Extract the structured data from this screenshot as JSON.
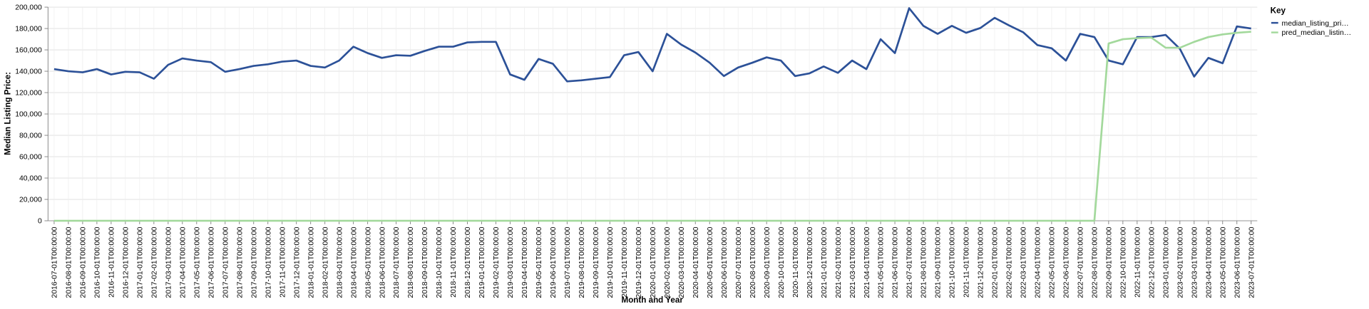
{
  "chart_data": {
    "type": "line",
    "x_label": "Month and Year",
    "y_label": "Median Listing Price:",
    "legend_title": "Key",
    "categories": [
      "2016-07-01T00:00:00",
      "2016-08-01T00:00:00",
      "2016-09-01T00:00:00",
      "2016-10-01T00:00:00",
      "2016-11-01T00:00:00",
      "2016-12-01T00:00:00",
      "2017-01-01T00:00:00",
      "2017-02-01T00:00:00",
      "2017-03-01T00:00:00",
      "2017-04-01T00:00:00",
      "2017-05-01T00:00:00",
      "2017-06-01T00:00:00",
      "2017-07-01T00:00:00",
      "2017-08-01T00:00:00",
      "2017-09-01T00:00:00",
      "2017-10-01T00:00:00",
      "2017-11-01T00:00:00",
      "2017-12-01T00:00:00",
      "2018-01-01T00:00:00",
      "2018-02-01T00:00:00",
      "2018-03-01T00:00:00",
      "2018-04-01T00:00:00",
      "2018-05-01T00:00:00",
      "2018-06-01T00:00:00",
      "2018-07-01T00:00:00",
      "2018-08-01T00:00:00",
      "2018-09-01T00:00:00",
      "2018-10-01T00:00:00",
      "2018-11-01T00:00:00",
      "2018-12-01T00:00:00",
      "2019-01-01T00:00:00",
      "2019-02-01T00:00:00",
      "2019-03-01T00:00:00",
      "2019-04-01T00:00:00",
      "2019-05-01T00:00:00",
      "2019-06-01T00:00:00",
      "2019-07-01T00:00:00",
      "2019-08-01T00:00:00",
      "2019-09-01T00:00:00",
      "2019-10-01T00:00:00",
      "2019-11-01T00:00:00",
      "2019-12-01T00:00:00",
      "2020-01-01T00:00:00",
      "2020-02-01T00:00:00",
      "2020-03-01T00:00:00",
      "2020-04-01T00:00:00",
      "2020-05-01T00:00:00",
      "2020-06-01T00:00:00",
      "2020-07-01T00:00:00",
      "2020-08-01T00:00:00",
      "2020-09-01T00:00:00",
      "2020-10-01T00:00:00",
      "2020-11-01T00:00:00",
      "2020-12-01T00:00:00",
      "2021-01-01T00:00:00",
      "2021-02-01T00:00:00",
      "2021-03-01T00:00:00",
      "2021-04-01T00:00:00",
      "2021-05-01T00:00:00",
      "2021-06-01T00:00:00",
      "2021-07-01T00:00:00",
      "2021-08-01T00:00:00",
      "2021-09-01T00:00:00",
      "2021-10-01T00:00:00",
      "2021-11-01T00:00:00",
      "2021-12-01T00:00:00",
      "2022-01-01T00:00:00",
      "2022-02-01T00:00:00",
      "2022-03-01T00:00:00",
      "2022-04-01T00:00:00",
      "2022-05-01T00:00:00",
      "2022-06-01T00:00:00",
      "2022-07-01T00:00:00",
      "2022-08-01T00:00:00",
      "2022-09-01T00:00:00",
      "2022-10-01T00:00:00",
      "2022-11-01T00:00:00",
      "2022-12-01T00:00:00",
      "2023-01-01T00:00:00",
      "2023-02-01T00:00:00",
      "2023-03-01T00:00:00",
      "2023-04-01T00:00:00",
      "2023-05-01T00:00:00",
      "2023-06-01T00:00:00",
      "2023-07-01T00:00:00"
    ],
    "series": [
      {
        "name": "median_listing_pri…",
        "color": "#2c5198",
        "values": [
          142000,
          140000,
          139000,
          142000,
          137000,
          139500,
          139000,
          133000,
          146000,
          152000,
          150000,
          148500,
          139500,
          142000,
          145000,
          146500,
          149000,
          150000,
          145000,
          143500,
          150000,
          163000,
          157000,
          152500,
          155000,
          154500,
          159000,
          163000,
          163000,
          167000,
          167500,
          167500,
          137000,
          132000,
          151500,
          147000,
          130500,
          131500,
          133000,
          134500,
          155000,
          158000,
          140000,
          175000,
          165000,
          157500,
          148000,
          135500,
          143500,
          148000,
          153000,
          150000,
          135500,
          138000,
          144500,
          138500,
          150000,
          142000,
          170000,
          157000,
          199000,
          182500,
          175000,
          182500,
          176000,
          180500,
          190000,
          183000,
          176500,
          164500,
          161500,
          150000,
          175000,
          172000,
          150000,
          146500,
          172000,
          172000,
          174000,
          161000,
          135000,
          152500,
          147500,
          182000,
          180000
        ]
      },
      {
        "name": "pred_median_listin…",
        "color": "#a3d99c",
        "values": [
          0,
          0,
          0,
          0,
          0,
          0,
          0,
          0,
          0,
          0,
          0,
          0,
          0,
          0,
          0,
          0,
          0,
          0,
          0,
          0,
          0,
          0,
          0,
          0,
          0,
          0,
          0,
          0,
          0,
          0,
          0,
          0,
          0,
          0,
          0,
          0,
          0,
          0,
          0,
          0,
          0,
          0,
          0,
          0,
          0,
          0,
          0,
          0,
          0,
          0,
          0,
          0,
          0,
          0,
          0,
          0,
          0,
          0,
          0,
          0,
          0,
          0,
          0,
          0,
          0,
          0,
          0,
          0,
          0,
          0,
          0,
          0,
          0,
          0,
          166000,
          170000,
          171000,
          171500,
          162000,
          162000,
          167500,
          172000,
          174500,
          176000,
          177000
        ]
      }
    ],
    "ylim": [
      0,
      200000
    ],
    "yticks": [
      0,
      {
        "value": 20000,
        "label": "20,000"
      },
      {
        "value": 40000,
        "label": "40,000"
      },
      {
        "value": 60000,
        "label": "60,000"
      },
      {
        "value": 80000,
        "label": "80,000"
      },
      {
        "value": 100000,
        "label": "100,000"
      },
      {
        "value": 120000,
        "label": "120,000"
      },
      {
        "value": 140000,
        "label": "140,000"
      },
      {
        "value": 160000,
        "label": "160,000"
      },
      {
        "value": 180000,
        "label": "180,000"
      },
      {
        "value": 200000,
        "label": "200,000"
      }
    ],
    "grid": true
  }
}
